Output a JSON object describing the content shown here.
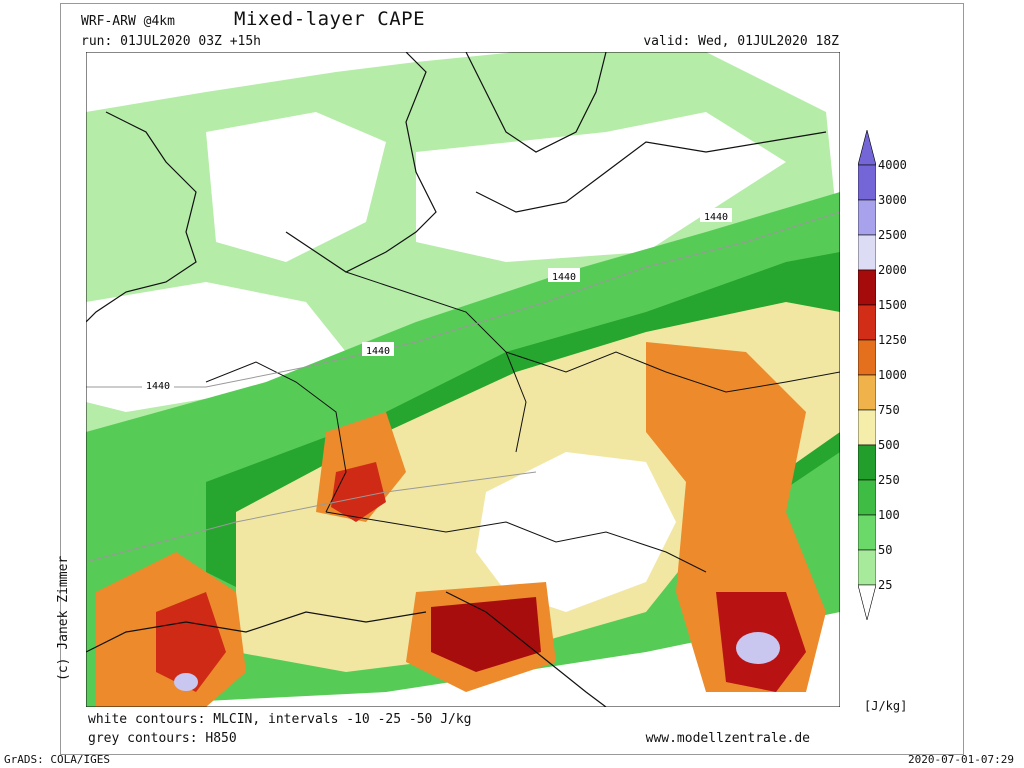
{
  "header": {
    "model": "WRF-ARW @4km",
    "title": "Mixed-layer CAPE",
    "run": "run: 01JUL2020 03Z +15h",
    "valid": "valid: Wed, 01JUL2020 18Z"
  },
  "credit": "(c) Janek Zimmer",
  "map": {
    "contour_labels": [
      "1440",
      "1440",
      "1440",
      "1440"
    ]
  },
  "legend": {
    "unit": "[J/kg]",
    "levels": [
      "25",
      "50",
      "100",
      "250",
      "500",
      "750",
      "1000",
      "1250",
      "1500",
      "2000",
      "2500",
      "3000",
      "4000"
    ],
    "colors": [
      "#d8f7d0",
      "#a8ea9c",
      "#6bd86a",
      "#3fbc43",
      "#229e2c",
      "#f4eeaa",
      "#f0b24a",
      "#e4701e",
      "#d22d16",
      "#a50b0b",
      "#dcdcf5",
      "#a8a2ec",
      "#7466d6"
    ]
  },
  "footer": {
    "contours_1": "white contours: MLCIN, intervals -10 -25 -50 J/kg",
    "contours_2": "grey contours: H850",
    "website": "www.modellzentrale.de",
    "grads": "GrADS: COLA/IGES",
    "timestamp": "2020-07-01-07:29"
  }
}
